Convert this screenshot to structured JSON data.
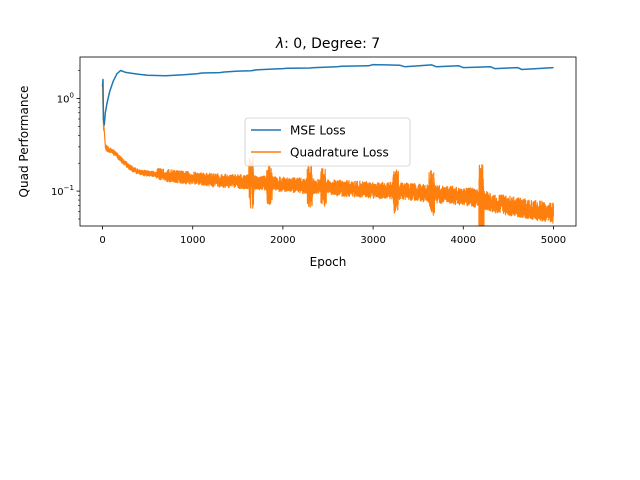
{
  "chart_data": {
    "type": "line",
    "title": "λ: 0, Degree: 7",
    "title_prefix": "λ",
    "title_rest": ": 0, Degree: 7",
    "xlabel": "Epoch",
    "ylabel": "Quad Performance",
    "xlim": [
      -250,
      5250
    ],
    "ylim": [
      0.042,
      2.8
    ],
    "yscale": "log",
    "grid": false,
    "legend_position": "center",
    "x_ticks": [
      0,
      1000,
      2000,
      3000,
      4000,
      5000
    ],
    "x_tick_labels": [
      "0",
      "1000",
      "2000",
      "3000",
      "4000",
      "5000"
    ],
    "y_major_ticks": [
      {
        "value": 0.1,
        "base": "10",
        "exp": "−1"
      },
      {
        "value": 1,
        "base": "10",
        "exp": "0"
      }
    ],
    "series": [
      {
        "name": "MSE Loss",
        "color": "#1f77b4",
        "x": [
          0,
          5,
          10,
          20,
          30,
          50,
          80,
          120,
          160,
          200,
          250,
          300,
          400,
          500,
          700,
          900,
          1050,
          1100,
          1300,
          1350,
          1500,
          1650,
          1700,
          1900,
          2000,
          2050,
          2300,
          2350,
          2600,
          2650,
          2950,
          3000,
          3300,
          3350,
          3650,
          3700,
          3950,
          4000,
          4300,
          4350,
          4600,
          4650,
          5000
        ],
        "y": [
          1.35,
          1.6,
          0.6,
          0.52,
          0.7,
          0.9,
          1.2,
          1.55,
          1.85,
          2.0,
          1.92,
          1.88,
          1.82,
          1.78,
          1.76,
          1.8,
          1.85,
          1.88,
          1.9,
          1.93,
          1.97,
          1.99,
          2.03,
          2.08,
          2.1,
          2.12,
          2.13,
          2.15,
          2.2,
          2.22,
          2.25,
          2.32,
          2.28,
          2.2,
          2.3,
          2.2,
          2.25,
          2.15,
          2.2,
          2.1,
          2.15,
          2.05,
          2.15
        ]
      },
      {
        "name": "Quadrature Loss",
        "color": "#ff7f0e",
        "x": [
          0,
          10,
          30,
          60,
          100,
          150,
          200,
          300,
          400,
          500,
          700,
          900,
          1100,
          1300,
          1500,
          1700,
          2000,
          2300,
          2600,
          3000,
          3300,
          3600,
          4000,
          4200,
          4300,
          4600,
          4800,
          5000
        ],
        "y": [
          1.35,
          0.6,
          0.3,
          0.28,
          0.27,
          0.25,
          0.22,
          0.18,
          0.16,
          0.155,
          0.148,
          0.14,
          0.135,
          0.13,
          0.127,
          0.124,
          0.118,
          0.113,
          0.108,
          0.103,
          0.1,
          0.095,
          0.088,
          0.083,
          0.075,
          0.067,
          0.062,
          0.058
        ]
      }
    ]
  }
}
